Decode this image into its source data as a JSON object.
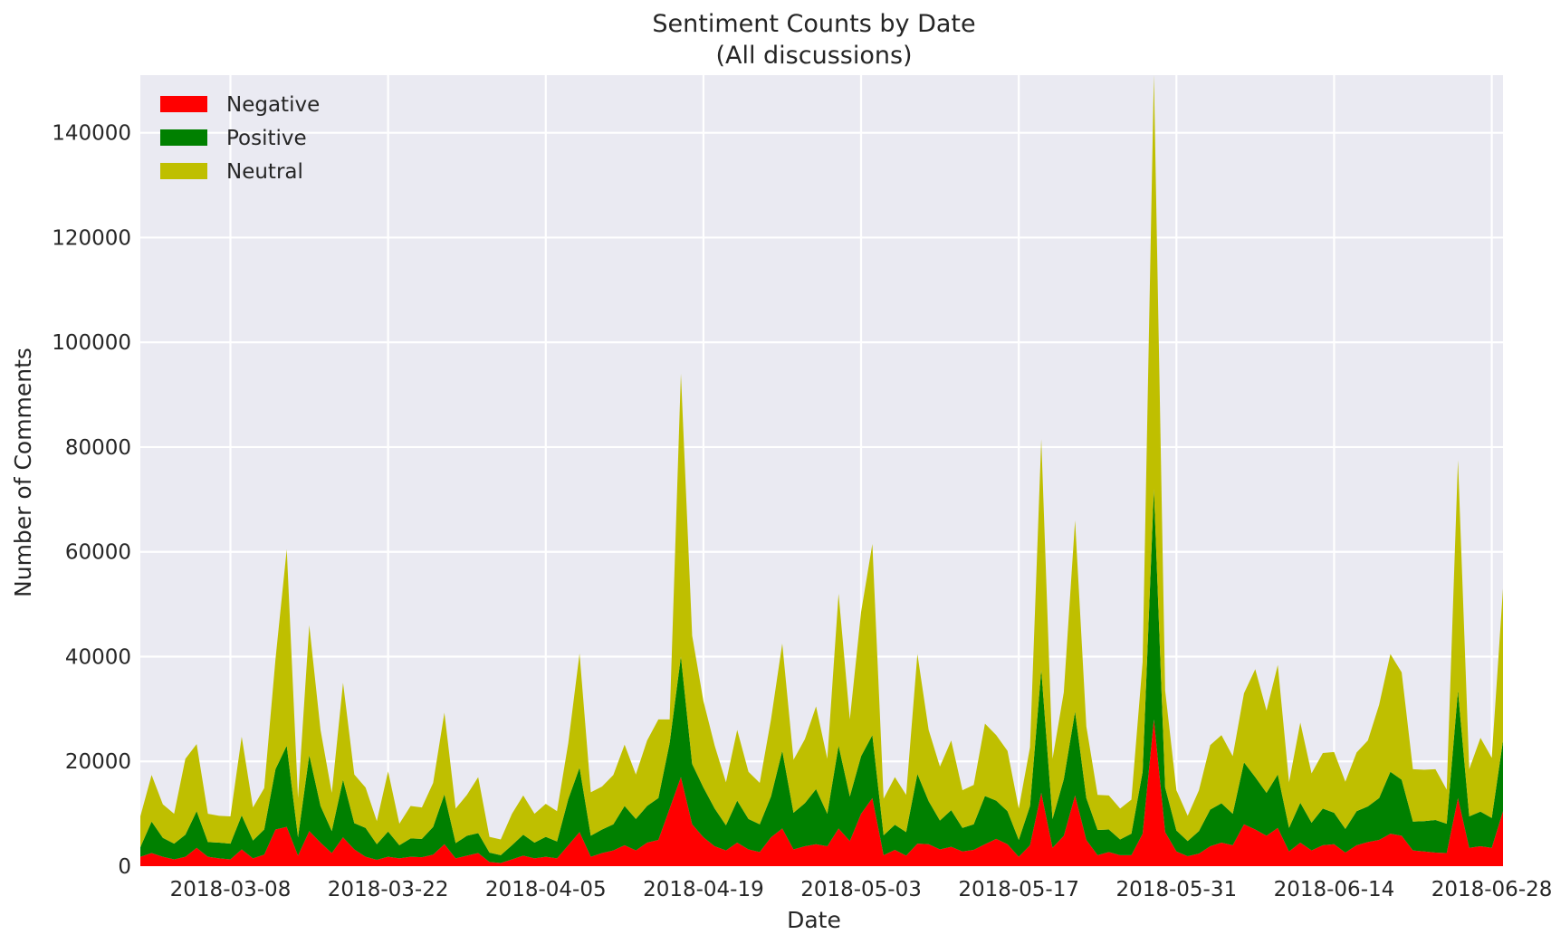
{
  "chart_data": {
    "type": "area",
    "stacked": true,
    "title": "Sentiment Counts by Date",
    "subtitle": "(All discussions)",
    "xlabel": "Date",
    "ylabel": "Number of Comments",
    "x_start": "2018-02-28",
    "x_end": "2018-06-29",
    "xlim": [
      "2018-02-28",
      "2018-06-29"
    ],
    "ylim": [
      0,
      151000
    ],
    "grid": true,
    "legend_position": "top-left",
    "x_tick_labels": [
      "2018-03-08",
      "2018-03-22",
      "2018-04-05",
      "2018-04-19",
      "2018-05-03",
      "2018-05-17",
      "2018-05-31",
      "2018-06-14",
      "2018-06-28"
    ],
    "y_ticks": [
      0,
      20000,
      40000,
      60000,
      80000,
      100000,
      120000,
      140000
    ],
    "y_tick_labels": [
      "0",
      "20000",
      "40000",
      "60000",
      "80000",
      "100000",
      "120000",
      "140000"
    ],
    "series": [
      {
        "name": "Negative",
        "color": "#ff0000",
        "values": [
          1800,
          2500,
          1800,
          1300,
          1800,
          3500,
          1800,
          1500,
          1300,
          3200,
          1500,
          2200,
          7000,
          7500,
          2000,
          6700,
          4500,
          2500,
          5500,
          3200,
          1800,
          1200,
          1800,
          1500,
          1800,
          1700,
          2200,
          4200,
          1500,
          2000,
          2500,
          800,
          600,
          1300,
          2000,
          1500,
          1800,
          1500,
          4000,
          6500,
          1800,
          2500,
          3000,
          4000,
          3000,
          4500,
          5000,
          11000,
          17000,
          8000,
          5500,
          3800,
          3000,
          4500,
          3200,
          2700,
          5500,
          7200,
          3200,
          3800,
          4200,
          3800,
          7200,
          4800,
          10000,
          13000,
          2100,
          3100,
          2000,
          4300,
          4200,
          3200,
          3700,
          2800,
          3100,
          4200,
          5200,
          4200,
          1800,
          4000,
          14000,
          3500,
          5800,
          13500,
          5000,
          2100,
          2700,
          2100,
          2100,
          6200,
          28000,
          6500,
          2800,
          1900,
          2400,
          3800,
          4500,
          4000,
          8000,
          7000,
          5800,
          7300,
          2800,
          4500,
          3000,
          4000,
          4200,
          2600,
          4000,
          4600,
          5000,
          6200,
          5800,
          3000,
          2800,
          2600,
          2500,
          13000,
          3500,
          3800,
          3500,
          10500
        ]
      },
      {
        "name": "Positive",
        "color": "#008000",
        "values": [
          1800,
          6000,
          3600,
          3000,
          4200,
          7000,
          2800,
          3000,
          3000,
          6500,
          3400,
          4800,
          11500,
          15500,
          3500,
          14500,
          7000,
          4200,
          11000,
          5000,
          5500,
          3000,
          4800,
          2500,
          3500,
          3500,
          5300,
          9500,
          2900,
          3800,
          3800,
          1800,
          1500,
          2700,
          4000,
          3000,
          3800,
          3200,
          8800,
          12300,
          4000,
          4500,
          5000,
          7500,
          6000,
          7000,
          8000,
          12500,
          23000,
          11500,
          9500,
          7200,
          4800,
          8000,
          5800,
          5300,
          7800,
          14800,
          7000,
          8200,
          10500,
          6200,
          15800,
          8500,
          11000,
          12000,
          3800,
          4800,
          4500,
          13300,
          8200,
          5500,
          7000,
          4500,
          4900,
          9200,
          7300,
          6300,
          3200,
          7500,
          23500,
          5500,
          10800,
          16000,
          8000,
          4800,
          4300,
          3000,
          4100,
          11800,
          44000,
          8500,
          4000,
          2900,
          4300,
          7000,
          7500,
          6000,
          11800,
          10000,
          8200,
          10200,
          4500,
          7600,
          5300,
          7000,
          6000,
          4500,
          6500,
          6800,
          8000,
          11800,
          10700,
          5500,
          5800,
          6200,
          5600,
          20500,
          6000,
          6600,
          5700,
          13500
        ]
      },
      {
        "name": "Neutral",
        "color": "#bfbf00",
        "values": [
          5900,
          8900,
          6400,
          5700,
          14500,
          12800,
          5400,
          5100,
          5200,
          15000,
          6300,
          7900,
          21000,
          37500,
          7500,
          24800,
          14500,
          7300,
          18500,
          9300,
          7700,
          4400,
          11500,
          4100,
          6200,
          6000,
          8400,
          15600,
          6600,
          7800,
          10700,
          3000,
          3000,
          6000,
          7500,
          5500,
          6300,
          5800,
          10700,
          21800,
          8300,
          8200,
          9400,
          11700,
          8500,
          12500,
          15000,
          4500,
          54000,
          24500,
          16500,
          12000,
          8200,
          13500,
          9000,
          7900,
          14700,
          20500,
          10100,
          12200,
          15800,
          10500,
          29000,
          14700,
          27500,
          36500,
          7000,
          9100,
          7100,
          22900,
          13600,
          10300,
          13300,
          7200,
          7500,
          13800,
          12500,
          11500,
          6000,
          11200,
          44000,
          11500,
          16600,
          36500,
          13700,
          6700,
          6500,
          5900,
          6500,
          21000,
          79000,
          18500,
          7700,
          4800,
          7800,
          12300,
          13000,
          11000,
          13200,
          20600,
          15700,
          20900,
          8700,
          15300,
          9400,
          10600,
          11600,
          9000,
          11200,
          12600,
          17800,
          22500,
          20500,
          10000,
          9800,
          9700,
          6500,
          44000,
          9000,
          14100,
          11500,
          29000
        ]
      }
    ]
  }
}
